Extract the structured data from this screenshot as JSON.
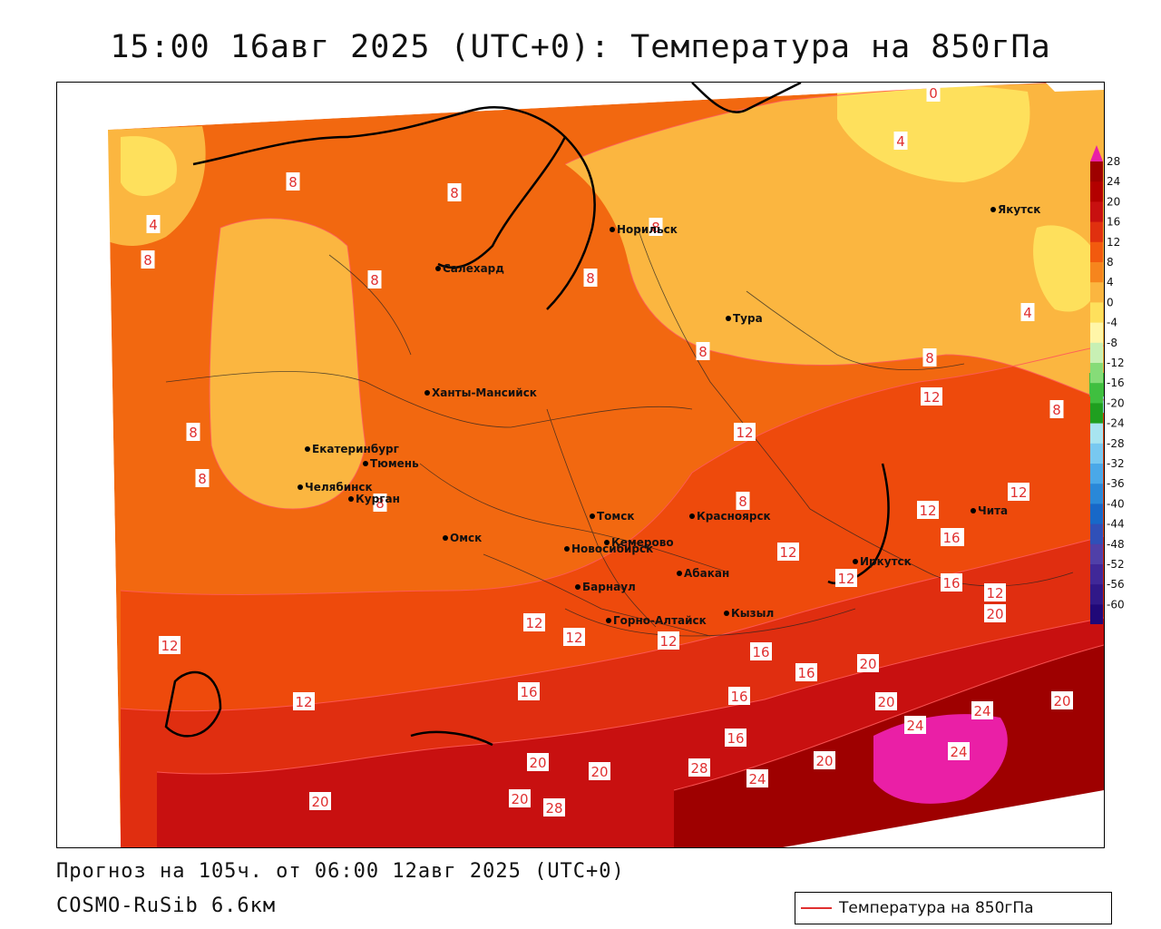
{
  "title": "15:00 16авг 2025 (UTC+0): Температура на 850гПа",
  "footer": {
    "forecast": "Прогноз на 105ч. от 06:00 12авг 2025 (UTC+0)",
    "model": "COSMO-RuSib 6.6км"
  },
  "legend": {
    "label": "Температура на 850гПа",
    "line_color": "#e03030"
  },
  "colorbar": {
    "ticks": [
      "28",
      "24",
      "20",
      "16",
      "12",
      "8",
      "4",
      "0",
      "-4",
      "-8",
      "-12",
      "-16",
      "-20",
      "-24",
      "-28",
      "-32",
      "-36",
      "-40",
      "-44",
      "-48",
      "-52",
      "-56",
      "-60"
    ]
  },
  "cities": [
    {
      "name": "Норильск"
    },
    {
      "name": "Якутск"
    },
    {
      "name": "Салехард"
    },
    {
      "name": "Тура"
    },
    {
      "name": "Ханты-Мансийск"
    },
    {
      "name": "Екатеринбург"
    },
    {
      "name": "Тюмень"
    },
    {
      "name": "Челябинск"
    },
    {
      "name": "Курган"
    },
    {
      "name": "Омск"
    },
    {
      "name": "Новосибирск"
    },
    {
      "name": "Томск"
    },
    {
      "name": "Кемерово"
    },
    {
      "name": "Красноярск"
    },
    {
      "name": "Абакан"
    },
    {
      "name": "Барнаул"
    },
    {
      "name": "Горно-Алтайск"
    },
    {
      "name": "Кызыл"
    },
    {
      "name": "Иркутск"
    },
    {
      "name": "Чита"
    }
  ],
  "contour_labels": [
    "0",
    "4",
    "4",
    "4",
    "8",
    "8",
    "8",
    "8",
    "8",
    "8",
    "8",
    "8",
    "8",
    "8",
    "8",
    "8",
    "8",
    "12",
    "12",
    "12",
    "12",
    "12",
    "12",
    "12",
    "12",
    "12",
    "12",
    "12",
    "12",
    "12",
    "16",
    "16",
    "16",
    "16",
    "16",
    "16",
    "16",
    "16",
    "20",
    "20",
    "20",
    "20",
    "20",
    "20",
    "20",
    "20",
    "20",
    "20",
    "24",
    "24",
    "24",
    "24",
    "28",
    "28"
  ],
  "palette": {
    "t28": "#ea1fa6",
    "t24": "#9e0000",
    "t20": "#c81010",
    "t16": "#e0300f",
    "t12": "#f25a0e",
    "t8": "#f6851d",
    "t4": "#fbb640",
    "t0": "#fee05c"
  }
}
